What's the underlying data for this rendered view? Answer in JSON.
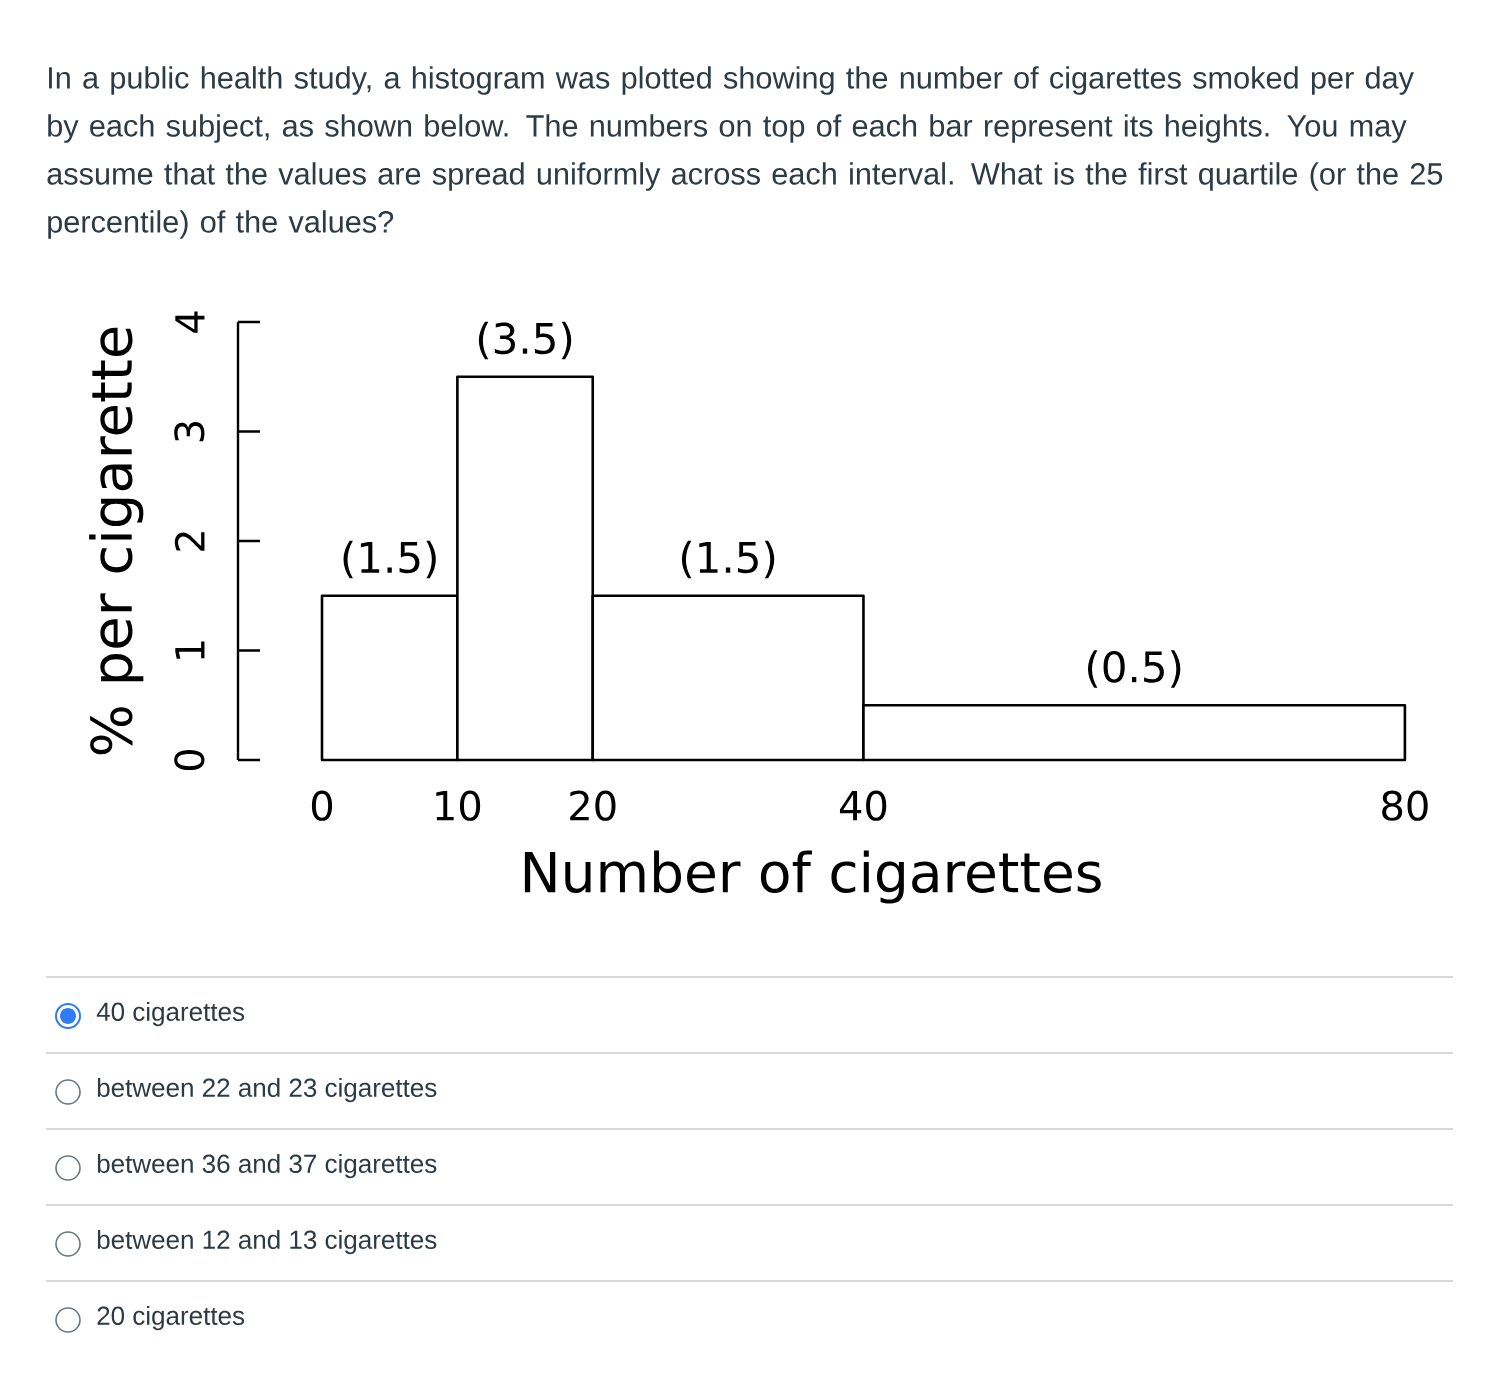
{
  "chart_data": {
    "type": "histogram",
    "title": "In a public health study, a histogram was plotted showing the number of cigarettes smoked per day by each subject, as shown below.  The numbers on top of each bar represent its heights. You may assume that the values are spread uniformly across each interval. What is the first quartile (or the 25 percentile) of the values?",
    "xlabel": "Number of cigarettes",
    "ylabel": "% per cigarette",
    "bins": [
      0,
      10,
      20,
      40,
      80
    ],
    "values": [
      1.5,
      3.5,
      1.5,
      0.5
    ],
    "value_labels": [
      "(1.5)",
      "(3.5)",
      "(1.5)",
      "(0.5)"
    ],
    "xlim": [
      0,
      80
    ],
    "xticks": [
      0,
      10,
      20,
      40,
      80
    ],
    "ylim": [
      0,
      4
    ],
    "yticks": [
      0,
      1,
      2,
      3,
      4
    ],
    "annotations": [
      "40 cigarettes",
      "between 22 and 23 cigarettes",
      "between 36 and 37 cigarettes",
      "between 12 and 13 cigarettes",
      "20 cigarettes"
    ]
  }
}
